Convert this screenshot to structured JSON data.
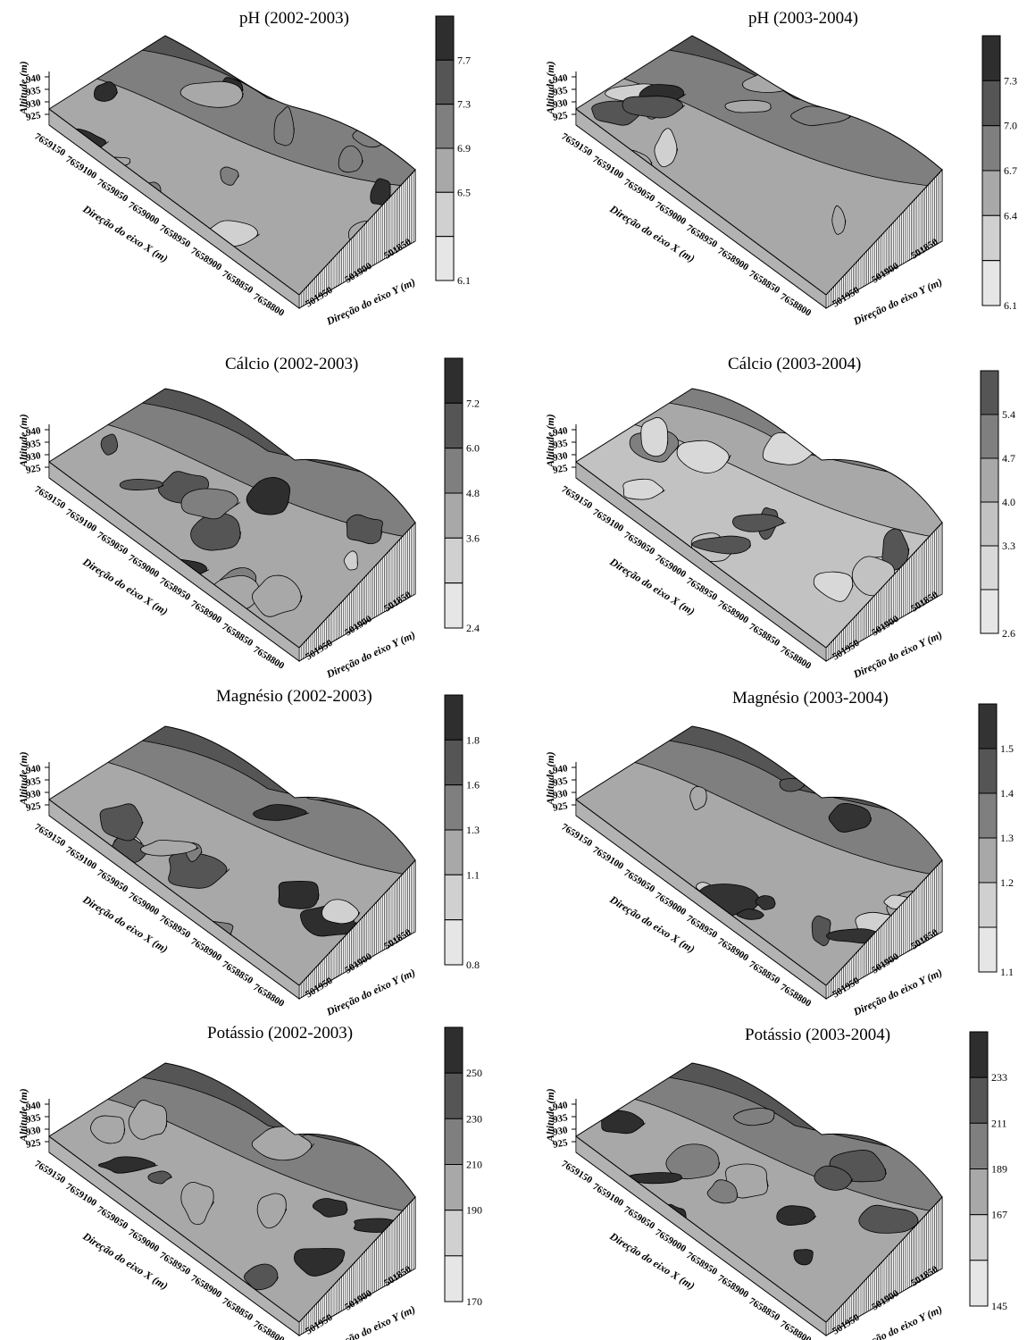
{
  "chart_data": [
    {
      "type": "heatmap",
      "title": "pH (2002-2003)",
      "zlabel": "Altitude (m)",
      "xlabel": "Direção do eixo X (m)",
      "ylabel": "Direção do eixo Y (m)",
      "z_ticks": [
        "940",
        "935",
        "930",
        "925"
      ],
      "x_ticks": [
        "7659150",
        "7659100",
        "7659050",
        "7659000",
        "7658950",
        "7658900",
        "7658850",
        "7658800"
      ],
      "y_ticks": [
        "501950",
        "501900",
        "501850"
      ],
      "legend_levels": [
        "7.7",
        "7.3",
        "6.9",
        "6.5",
        "6.1"
      ],
      "legend_colors": [
        "#2e2e2e",
        "#555555",
        "#7f7f7f",
        "#a8a8a8",
        "#d0d0d0",
        "#e6e6e6"
      ]
    },
    {
      "type": "heatmap",
      "title": "pH (2003-2004)",
      "zlabel": "Altitude (m)",
      "xlabel": "Direção do eixo X (m)",
      "ylabel": "Direção do eixo Y (m)",
      "z_ticks": [
        "940",
        "935",
        "930",
        "925"
      ],
      "x_ticks": [
        "7659150",
        "7659100",
        "7659050",
        "7659000",
        "7658950",
        "7658900",
        "7658850",
        "7658800"
      ],
      "y_ticks": [
        "501950",
        "501900",
        "501850"
      ],
      "legend_levels": [
        "7.3",
        "7.0",
        "6.7",
        "6.4",
        "6.1"
      ],
      "legend_colors": [
        "#2e2e2e",
        "#555555",
        "#7f7f7f",
        "#a8a8a8",
        "#d0d0d0",
        "#e6e6e6"
      ]
    },
    {
      "type": "heatmap",
      "title": "Cálcio (2002-2003)",
      "zlabel": "Altitude (m)",
      "xlabel": "Direção do eixo X (m)",
      "ylabel": "Direção do eixo Y (m)",
      "z_ticks": [
        "940",
        "935",
        "930",
        "925"
      ],
      "x_ticks": [
        "7659150",
        "7659100",
        "7659050",
        "7659000",
        "7658950",
        "7658900",
        "7658850",
        "7658800"
      ],
      "y_ticks": [
        "501950",
        "501900",
        "501850"
      ],
      "legend_levels": [
        "7.2",
        "6.0",
        "4.8",
        "3.6",
        "2.4"
      ],
      "legend_colors": [
        "#2e2e2e",
        "#555555",
        "#7f7f7f",
        "#a8a8a8",
        "#d0d0d0",
        "#e6e6e6"
      ]
    },
    {
      "type": "heatmap",
      "title": "Cálcio (2003-2004)",
      "zlabel": "Altitude (m)",
      "xlabel": "Direção do eixo X (m)",
      "ylabel": "Direção do eixo Y (m)",
      "z_ticks": [
        "940",
        "935",
        "930",
        "925"
      ],
      "x_ticks": [
        "7659150",
        "7659100",
        "7659050",
        "7659000",
        "7658950",
        "7658900",
        "7658850",
        "7658800"
      ],
      "y_ticks": [
        "501950",
        "501900",
        "501850"
      ],
      "legend_levels": [
        "5.4",
        "4.7",
        "4.0",
        "3.3",
        "2.6"
      ],
      "legend_colors": [
        "#555555",
        "#7f7f7f",
        "#a8a8a8",
        "#c2c2c2",
        "#d8d8d8",
        "#e6e6e6"
      ]
    },
    {
      "type": "heatmap",
      "title": "Magnésio (2002-2003)",
      "zlabel": "Altitude (m)",
      "xlabel": "Direção do eixo X (m)",
      "ylabel": "Direção do eixo Y (m)",
      "z_ticks": [
        "940",
        "935",
        "930",
        "925"
      ],
      "x_ticks": [
        "7659150",
        "7659100",
        "7659050",
        "7659000",
        "7658950",
        "7658900",
        "7658850",
        "7658800"
      ],
      "y_ticks": [
        "501950",
        "501900",
        "501850"
      ],
      "legend_levels": [
        "1.8",
        "1.6",
        "1.3",
        "1.1",
        "0.8"
      ],
      "legend_colors": [
        "#2e2e2e",
        "#555555",
        "#7f7f7f",
        "#a8a8a8",
        "#d0d0d0",
        "#e6e6e6"
      ]
    },
    {
      "type": "heatmap",
      "title": "Magnésio (2003-2004)",
      "zlabel": "Altitude (m)",
      "xlabel": "Direção do eixo X (m)",
      "ylabel": "Direção do eixo Y (m)",
      "z_ticks": [
        "940",
        "935",
        "930",
        "925"
      ],
      "x_ticks": [
        "7659150",
        "7659100",
        "7659050",
        "7659000",
        "7658950",
        "7658900",
        "7658850",
        "7658800"
      ],
      "y_ticks": [
        "501950",
        "501900",
        "501850"
      ],
      "legend_levels": [
        "1.5",
        "1.4",
        "1.3",
        "1.2",
        "1.1"
      ],
      "legend_colors": [
        "#333333",
        "#555555",
        "#7f7f7f",
        "#a8a8a8",
        "#d0d0d0",
        "#e6e6e6"
      ]
    },
    {
      "type": "heatmap",
      "title": "Potássio (2002-2003)",
      "zlabel": "Altitude (m)",
      "xlabel": "Direção do eixo X (m)",
      "ylabel": "Direção do eixo Y (m)",
      "z_ticks": [
        "940",
        "935",
        "930",
        "925"
      ],
      "x_ticks": [
        "7659150",
        "7659100",
        "7659050",
        "7659000",
        "7658950",
        "7658900",
        "7658850",
        "7658800"
      ],
      "y_ticks": [
        "501950",
        "501900",
        "501850"
      ],
      "legend_levels": [
        "250",
        "230",
        "210",
        "190",
        "170"
      ],
      "legend_colors": [
        "#2e2e2e",
        "#555555",
        "#7f7f7f",
        "#a8a8a8",
        "#d0d0d0",
        "#e6e6e6"
      ]
    },
    {
      "type": "heatmap",
      "title": "Potássio (2003-2004)",
      "zlabel": "Altitude (m)",
      "xlabel": "Direção do eixo X (m)",
      "ylabel": "Direção do eixo Y (m)",
      "z_ticks": [
        "940",
        "935",
        "930",
        "925"
      ],
      "x_ticks": [
        "7659150",
        "7659100",
        "7659050",
        "7659000",
        "7658950",
        "7658900",
        "7658850",
        "7658800"
      ],
      "y_ticks": [
        "501950",
        "501900",
        "501850"
      ],
      "legend_levels": [
        "233",
        "211",
        "189",
        "167",
        "145"
      ],
      "legend_colors": [
        "#2e2e2e",
        "#555555",
        "#7f7f7f",
        "#a8a8a8",
        "#d0d0d0",
        "#e6e6e6"
      ]
    }
  ]
}
